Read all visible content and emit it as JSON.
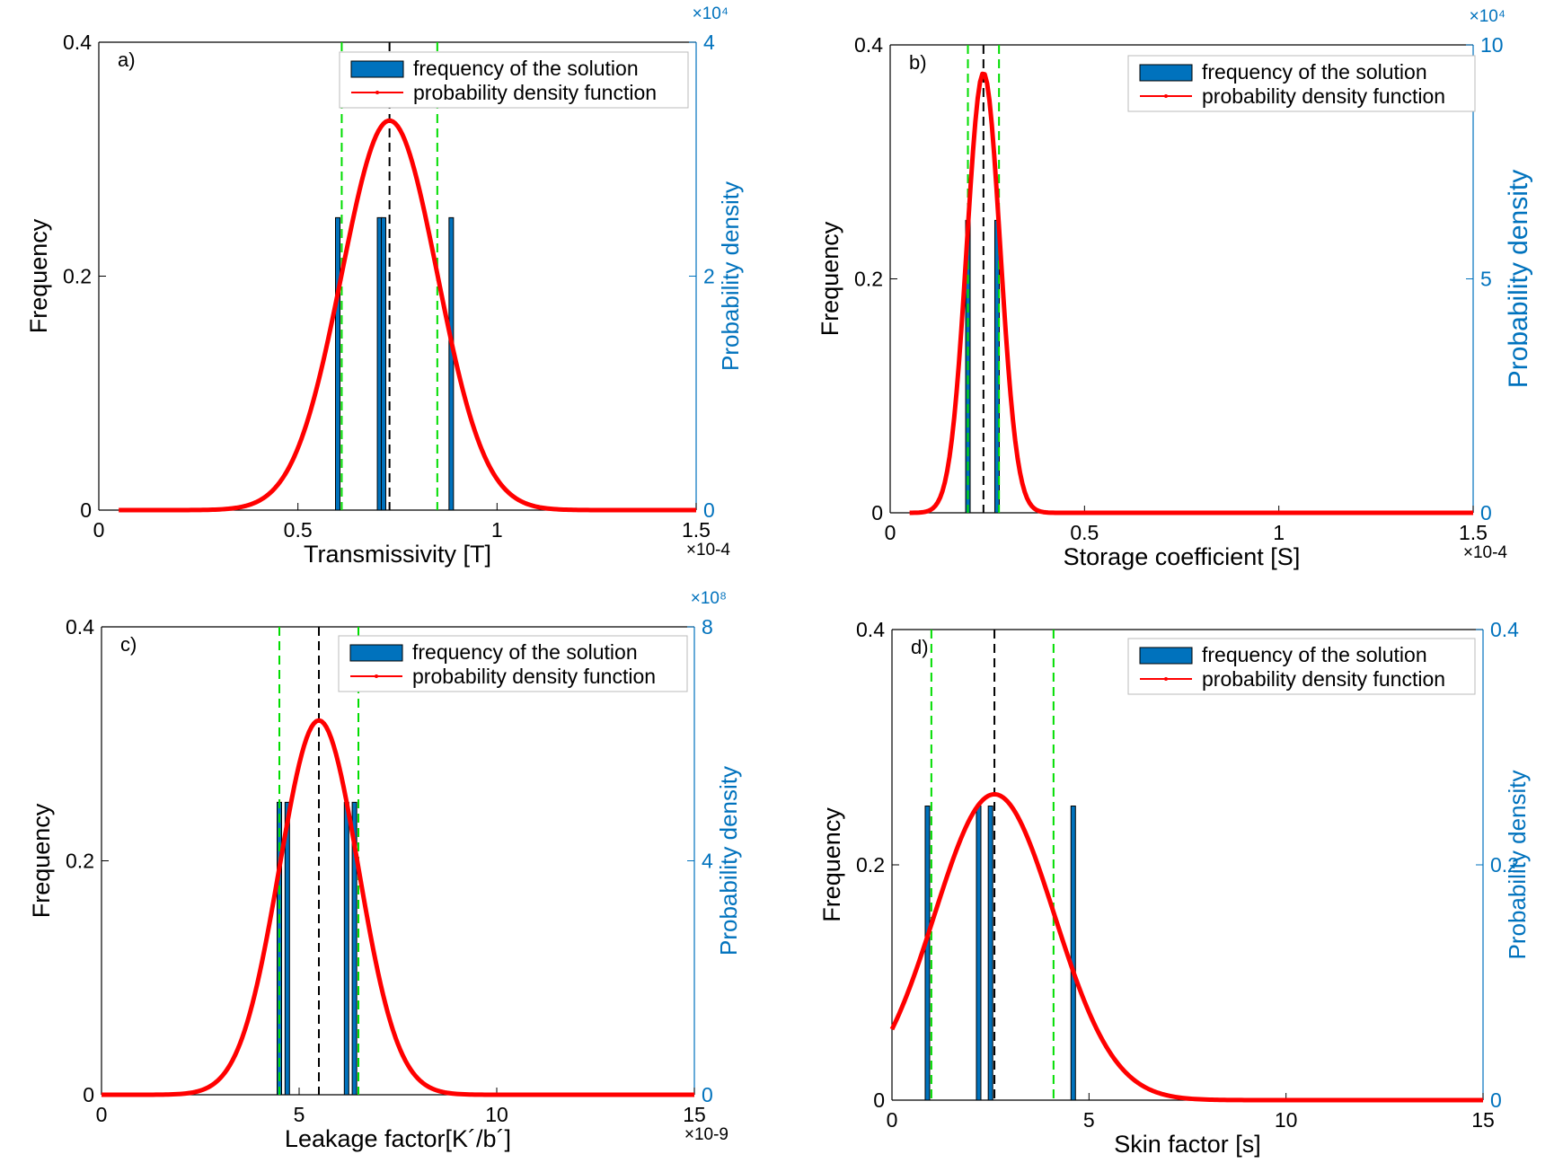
{
  "chart_data": [
    {
      "panel_label": "a)",
      "type": "bar",
      "xlabel": "Transmissivity [T]",
      "ylabel": "Frequency",
      "ylabel_right": "Probability density",
      "x_exponent": "×10-4",
      "right_exponent": "×10⁴",
      "xlim": [
        0,
        1.5
      ],
      "ylim": [
        0,
        0.4
      ],
      "ylim_right": [
        0,
        4
      ],
      "x_ticks": [
        "0",
        "0.5",
        "1",
        "1.5"
      ],
      "y_ticks": [
        "0",
        "0.2",
        "0.4"
      ],
      "y_right_ticks": [
        "0",
        "2",
        "4"
      ],
      "legend": {
        "position": "top-right",
        "entries": [
          "frequency of the solution",
          "probability density function"
        ]
      },
      "bars": {
        "name": "frequency of the solution",
        "x": [
          0.6,
          0.705,
          0.715,
          0.885
        ],
        "values": [
          0.25,
          0.25,
          0.25,
          0.25
        ]
      },
      "pdf": {
        "name": "probability density function",
        "mean": 0.73,
        "std": 0.12,
        "peak_right_units": 3.33,
        "x_range": [
          0.05,
          1.5
        ]
      },
      "mean_line": 0.73,
      "bound_lines": [
        0.61,
        0.85
      ]
    },
    {
      "panel_label": "b)",
      "type": "bar",
      "xlabel": "Storage  coefficient [S]",
      "ylabel": "Frequency",
      "ylabel_right": "Probability density",
      "x_exponent": "×10-4",
      "right_exponent": "×10⁴",
      "xlim": [
        0,
        1.5
      ],
      "ylim": [
        0,
        0.4
      ],
      "ylim_right": [
        0,
        10
      ],
      "x_ticks": [
        "0",
        "0.5",
        "1",
        "1.5"
      ],
      "y_ticks": [
        "0",
        "0.2",
        "0.4"
      ],
      "y_right_ticks": [
        "0",
        "5",
        "10"
      ],
      "legend": {
        "position": "top-right",
        "entries": [
          "frequency of the solution",
          "probability density function"
        ]
      },
      "bars": {
        "name": "frequency of the solution",
        "x": [
          0.2,
          0.275
        ],
        "values": [
          0.25,
          0.25
        ]
      },
      "pdf": {
        "name": "probability density function",
        "mean": 0.24,
        "std": 0.043,
        "peak_right_units": 9.4,
        "x_range": [
          0.05,
          1.5
        ]
      },
      "mean_line": 0.24,
      "bound_lines": [
        0.2,
        0.28
      ]
    },
    {
      "panel_label": "c)",
      "type": "bar",
      "xlabel": "Leakage factor[K´/b´]",
      "ylabel": "Frequency",
      "ylabel_right": "Probability density",
      "x_exponent": "×10-9",
      "right_exponent": "×10⁸",
      "xlim": [
        0,
        15
      ],
      "ylim": [
        0,
        0.4
      ],
      "ylim_right": [
        0,
        8
      ],
      "x_ticks": [
        "0",
        "5",
        "10",
        "15"
      ],
      "y_ticks": [
        "0",
        "0.2",
        "0.4"
      ],
      "y_right_ticks": [
        "0",
        "4",
        "8"
      ],
      "legend": {
        "position": "top-right",
        "entries": [
          "frequency of the solution",
          "probability density function"
        ]
      },
      "bars": {
        "name": "frequency of the solution",
        "x": [
          4.5,
          4.7,
          6.2,
          6.4
        ],
        "values": [
          0.25,
          0.25,
          0.25,
          0.25
        ]
      },
      "pdf": {
        "name": "probability density function",
        "mean": 5.5,
        "std": 1.0,
        "peak_right_units": 6.4,
        "x_range": [
          0,
          15
        ]
      },
      "mean_line": 5.5,
      "bound_lines": [
        4.5,
        6.5
      ]
    },
    {
      "panel_label": "d)",
      "type": "bar",
      "xlabel": "Skin factor [s]",
      "ylabel": "Frequency",
      "ylabel_right": "Probability density",
      "x_exponent": "",
      "right_exponent": "",
      "xlim": [
        0,
        15
      ],
      "ylim": [
        0,
        0.4
      ],
      "ylim_right": [
        0,
        0.4
      ],
      "x_ticks": [
        "0",
        "5",
        "10",
        "15"
      ],
      "y_ticks": [
        "0",
        "0.2",
        "0.4"
      ],
      "y_right_ticks": [
        "0",
        "0.2",
        "0.4"
      ],
      "legend": {
        "position": "top-right",
        "entries": [
          "frequency of the solution",
          "probability density function"
        ]
      },
      "bars": {
        "name": "frequency of the solution",
        "x": [
          0.9,
          2.2,
          2.5,
          4.6
        ],
        "values": [
          0.25,
          0.25,
          0.25,
          0.25
        ]
      },
      "pdf": {
        "name": "probability density function",
        "mean": 2.6,
        "std": 1.52,
        "peak_right_units": 0.26,
        "x_range": [
          0,
          15
        ]
      },
      "mean_line": 2.6,
      "bound_lines": [
        1.0,
        4.1
      ]
    }
  ],
  "colors": {
    "bar_fill": "#0072BD",
    "bar_edge": "#000000",
    "pdf_line": "#FF0000",
    "mean_line": "#000000",
    "bound_line": "#00DD00",
    "right_axis": "#0072BD",
    "left_axis": "#000000"
  }
}
